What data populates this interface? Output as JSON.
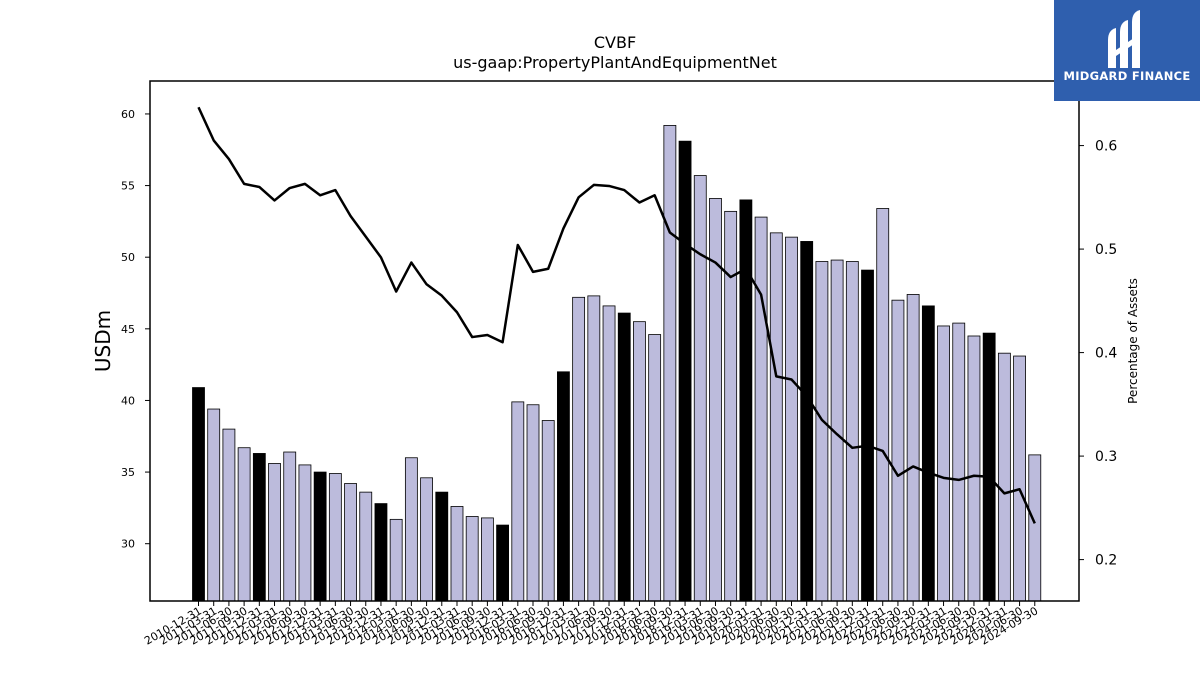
{
  "brand": {
    "name": "MIDGARD FINANCE",
    "bg_color": "#2f5fae",
    "mark_icon": "midgard-m-logo-icon"
  },
  "chart_data": {
    "type": "bar",
    "title": "CVBF",
    "subtitle": "us-gaap:PropertyPlantAndEquipmentNet",
    "ylabel": "USDm",
    "y2label": "Percentage of Assets",
    "ylim": [
      26.0,
      62.3
    ],
    "y2lim": [
      0.16,
      0.6624
    ],
    "yticks": [
      30,
      35,
      40,
      45,
      50,
      55,
      60
    ],
    "y2ticks": [
      0.2,
      0.3,
      0.4,
      0.5,
      0.6
    ],
    "grid": false,
    "colors": {
      "bar_default": "#bcbbdc",
      "bar_highlight": "#000000",
      "line": "#000000",
      "bar_edge": "#000000"
    },
    "categories": [
      "2010-12-31",
      "2011-03-31",
      "2011-06-30",
      "2011-09-30",
      "2011-12-31",
      "2012-03-31",
      "2012-06-30",
      "2012-09-30",
      "2012-12-31",
      "2013-03-31",
      "2013-06-30",
      "2013-09-30",
      "2013-12-31",
      "2014-03-31",
      "2014-06-30",
      "2014-09-30",
      "2014-12-31",
      "2015-03-31",
      "2015-06-30",
      "2015-09-30",
      "2015-12-31",
      "2016-03-31",
      "2016-06-30",
      "2016-09-30",
      "2016-12-31",
      "2017-03-31",
      "2017-06-30",
      "2017-09-30",
      "2017-12-31",
      "2018-03-31",
      "2018-06-30",
      "2018-09-30",
      "2018-12-31",
      "2019-03-31",
      "2019-06-30",
      "2019-09-30",
      "2019-12-31",
      "2020-03-31",
      "2020-06-30",
      "2020-09-30",
      "2020-12-31",
      "2021-03-31",
      "2021-06-30",
      "2021-09-30",
      "2021-12-31",
      "2022-03-31",
      "2022-06-30",
      "2022-09-30",
      "2022-12-31",
      "2023-03-31",
      "2023-06-30",
      "2023-09-30",
      "2023-12-31",
      "2024-03-31",
      "2024-06-30",
      "2024-09-30"
    ],
    "series": [
      {
        "kind": "bar",
        "axis": "left",
        "values": [
          40.9,
          39.4,
          38.0,
          36.7,
          36.3,
          35.6,
          36.4,
          35.5,
          35.0,
          34.9,
          34.2,
          33.6,
          32.8,
          31.7,
          36.0,
          34.6,
          33.6,
          32.6,
          31.9,
          31.8,
          31.3,
          39.9,
          39.7,
          38.6,
          42.0,
          47.2,
          47.3,
          46.6,
          46.1,
          45.5,
          44.6,
          59.2,
          58.1,
          55.7,
          54.1,
          53.2,
          54.0,
          52.8,
          51.7,
          51.4,
          51.1,
          49.7,
          49.8,
          49.7,
          49.1,
          53.4,
          47.0,
          47.4,
          46.6,
          45.2,
          45.4,
          44.5,
          44.7,
          43.3,
          43.1,
          36.2
        ],
        "highlight": [
          true,
          false,
          false,
          false,
          true,
          false,
          false,
          false,
          true,
          false,
          false,
          false,
          true,
          false,
          false,
          false,
          true,
          false,
          false,
          false,
          true,
          false,
          false,
          false,
          true,
          false,
          false,
          false,
          true,
          false,
          false,
          false,
          true,
          false,
          false,
          false,
          true,
          false,
          false,
          false,
          true,
          false,
          false,
          false,
          true,
          false,
          false,
          false,
          true,
          false,
          false,
          false,
          true,
          false,
          false,
          false
        ]
      },
      {
        "kind": "line",
        "axis": "right",
        "values": [
          0.637,
          0.605,
          0.587,
          0.563,
          0.56,
          0.547,
          0.559,
          0.563,
          0.552,
          0.557,
          0.532,
          0.512,
          0.492,
          0.459,
          0.487,
          0.466,
          0.455,
          0.439,
          0.415,
          0.417,
          0.41,
          0.504,
          0.478,
          0.481,
          0.52,
          0.55,
          0.562,
          0.561,
          0.557,
          0.545,
          0.552,
          0.516,
          0.505,
          0.495,
          0.487,
          0.473,
          0.481,
          0.456,
          0.377,
          0.374,
          0.358,
          0.335,
          0.321,
          0.308,
          0.31,
          0.305,
          0.281,
          0.29,
          0.284,
          0.279,
          0.277,
          0.281,
          0.28,
          0.264,
          0.268,
          0.235
        ]
      }
    ]
  }
}
